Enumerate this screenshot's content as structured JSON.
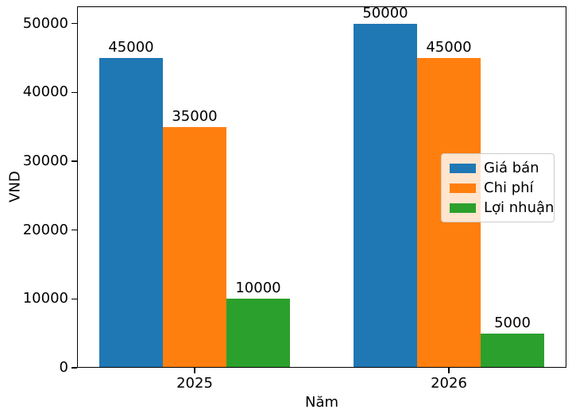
{
  "chart_data": {
    "type": "bar",
    "title": "",
    "xlabel": "Năm",
    "ylabel": "VND",
    "categories": [
      "2025",
      "2026"
    ],
    "series": [
      {
        "name": "Giá bán",
        "color": "#1f77b4",
        "values": [
          45000,
          50000
        ]
      },
      {
        "name": "Chi phí",
        "color": "#ff7f0e",
        "values": [
          35000,
          45000
        ]
      },
      {
        "name": "Lợi nhuận",
        "color": "#2ca02c",
        "values": [
          10000,
          5000
        ]
      }
    ],
    "bar_value_labels_shown": true,
    "ylim": [
      0,
      52500
    ],
    "yticks": [
      0,
      10000,
      20000,
      30000,
      40000,
      50000
    ],
    "grid": false,
    "legend_position": "center-right",
    "frame_color": "#000000",
    "text_color": "#000000",
    "background_color": "#ffffff"
  }
}
